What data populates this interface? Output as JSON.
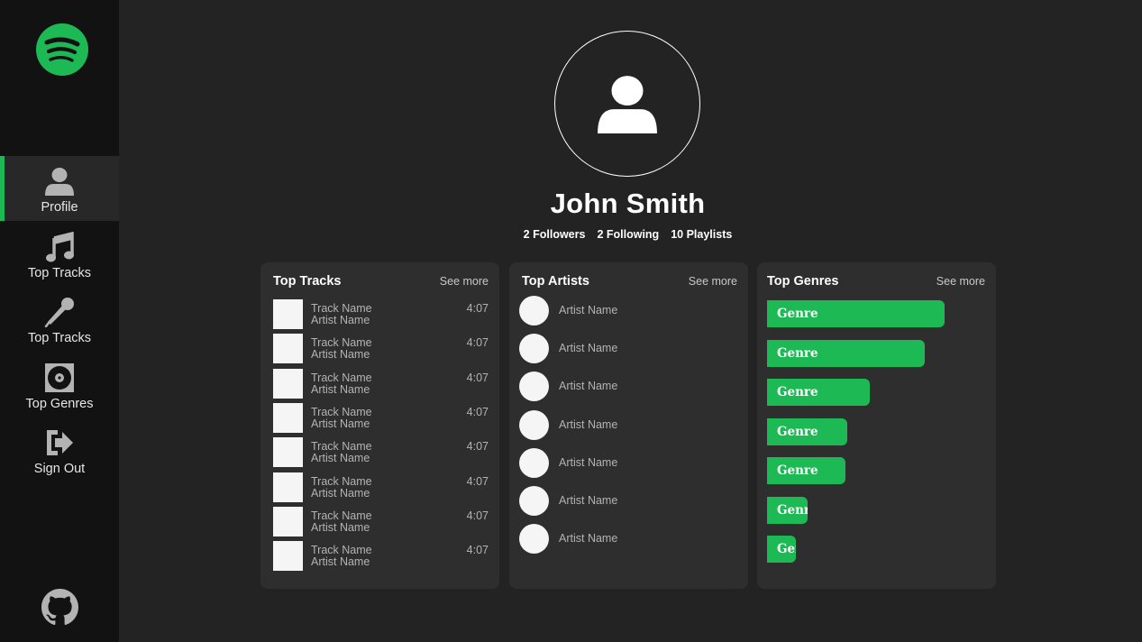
{
  "sidebar": {
    "logo": "spotify-logo",
    "items": [
      {
        "label": "Profile",
        "icon": "user-icon",
        "active": true
      },
      {
        "label": "Top Tracks",
        "icon": "music-note-icon",
        "active": false
      },
      {
        "label": "Top Tracks",
        "icon": "microphone-icon",
        "active": false
      },
      {
        "label": "Top Genres",
        "icon": "vinyl-icon",
        "active": false
      },
      {
        "label": "Sign Out",
        "icon": "sign-out-icon",
        "active": false
      }
    ],
    "footer_icon": "github-icon"
  },
  "profile": {
    "name": "John Smith",
    "followers": "2 Followers",
    "following": "2 Following",
    "playlists": "10 Playlists"
  },
  "top_tracks": {
    "title": "Top Tracks",
    "see_more": "See more",
    "items": [
      {
        "name": "Track Name",
        "artist": "Artist Name",
        "duration": "4:07"
      },
      {
        "name": "Track Name",
        "artist": "Artist Name",
        "duration": "4:07"
      },
      {
        "name": "Track Name",
        "artist": "Artist Name",
        "duration": "4:07"
      },
      {
        "name": "Track Name",
        "artist": "Artist Name",
        "duration": "4:07"
      },
      {
        "name": "Track Name",
        "artist": "Artist Name",
        "duration": "4:07"
      },
      {
        "name": "Track Name",
        "artist": "Artist Name",
        "duration": "4:07"
      },
      {
        "name": "Track Name",
        "artist": "Artist Name",
        "duration": "4:07"
      },
      {
        "name": "Track Name",
        "artist": "Artist Name",
        "duration": "4:07"
      }
    ]
  },
  "top_artists": {
    "title": "Top Artists",
    "see_more": "See more",
    "items": [
      {
        "name": "Artist Name"
      },
      {
        "name": "Artist Name"
      },
      {
        "name": "Artist Name"
      },
      {
        "name": "Artist Name"
      },
      {
        "name": "Artist Name"
      },
      {
        "name": "Artist Name"
      },
      {
        "name": "Artist Name"
      }
    ]
  },
  "top_genres": {
    "title": "Top Genres",
    "see_more": "See more",
    "items": [
      {
        "label": "Genre",
        "share": 1.0
      },
      {
        "label": "Genre",
        "share": 0.89
      },
      {
        "label": "Genre",
        "share": 0.58
      },
      {
        "label": "Genre",
        "share": 0.45
      },
      {
        "label": "Genre",
        "share": 0.44
      },
      {
        "label": "Genre",
        "share": 0.23
      },
      {
        "label": "Genre",
        "share": 0.16
      }
    ]
  },
  "colors": {
    "accent": "#1db954",
    "background": "#232323",
    "sidebar": "#121212",
    "card": "#2e2e2e"
  }
}
